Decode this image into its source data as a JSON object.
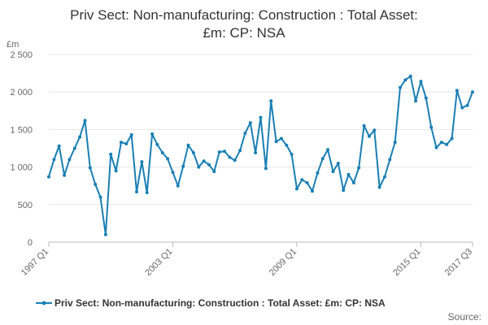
{
  "chart_data": {
    "type": "line",
    "title_line1": "Priv Sect: Non-manufacturing: Construction : Total Asset:",
    "title_line2": "£m: CP: NSA",
    "ylabel": "£m",
    "ylim": [
      0,
      2500
    ],
    "yticks": [
      0,
      500,
      1000,
      1500,
      2000,
      2500
    ],
    "ytick_labels": [
      "0",
      "500",
      "1 000",
      "1 500",
      "2 000",
      "2 500"
    ],
    "xtick_labels": [
      "1997 Q1",
      "2003 Q1",
      "2009 Q1",
      "2015 Q1",
      "2017 Q3"
    ],
    "xtick_indices": [
      0,
      24,
      48,
      72,
      82
    ],
    "legend": "Priv Sect: Non-manufacturing: Construction : Total Asset: £m: CP: NSA",
    "source": "Source:",
    "color": "#1a7fb5",
    "series": [
      {
        "name": "Priv Sect: Non-manufacturing: Construction : Total Asset: £m: CP: NSA",
        "start": "1997 Q1",
        "values": [
          870,
          1100,
          1280,
          890,
          1100,
          1250,
          1400,
          1620,
          990,
          770,
          600,
          100,
          1170,
          950,
          1330,
          1310,
          1430,
          670,
          1070,
          660,
          1440,
          1300,
          1190,
          1110,
          930,
          750,
          1010,
          1290,
          1190,
          1000,
          1080,
          1030,
          940,
          1200,
          1210,
          1130,
          1090,
          1220,
          1450,
          1590,
          1190,
          1660,
          980,
          1880,
          1340,
          1380,
          1290,
          1170,
          710,
          830,
          790,
          680,
          920,
          1110,
          1230,
          940,
          1050,
          690,
          900,
          790,
          990,
          1550,
          1410,
          1490,
          730,
          870,
          1100,
          1330,
          2060,
          2160,
          2210,
          1880,
          2140,
          1920,
          1530,
          1260,
          1330,
          1300,
          1380,
          2020,
          1790,
          1820,
          2000
        ]
      }
    ]
  }
}
